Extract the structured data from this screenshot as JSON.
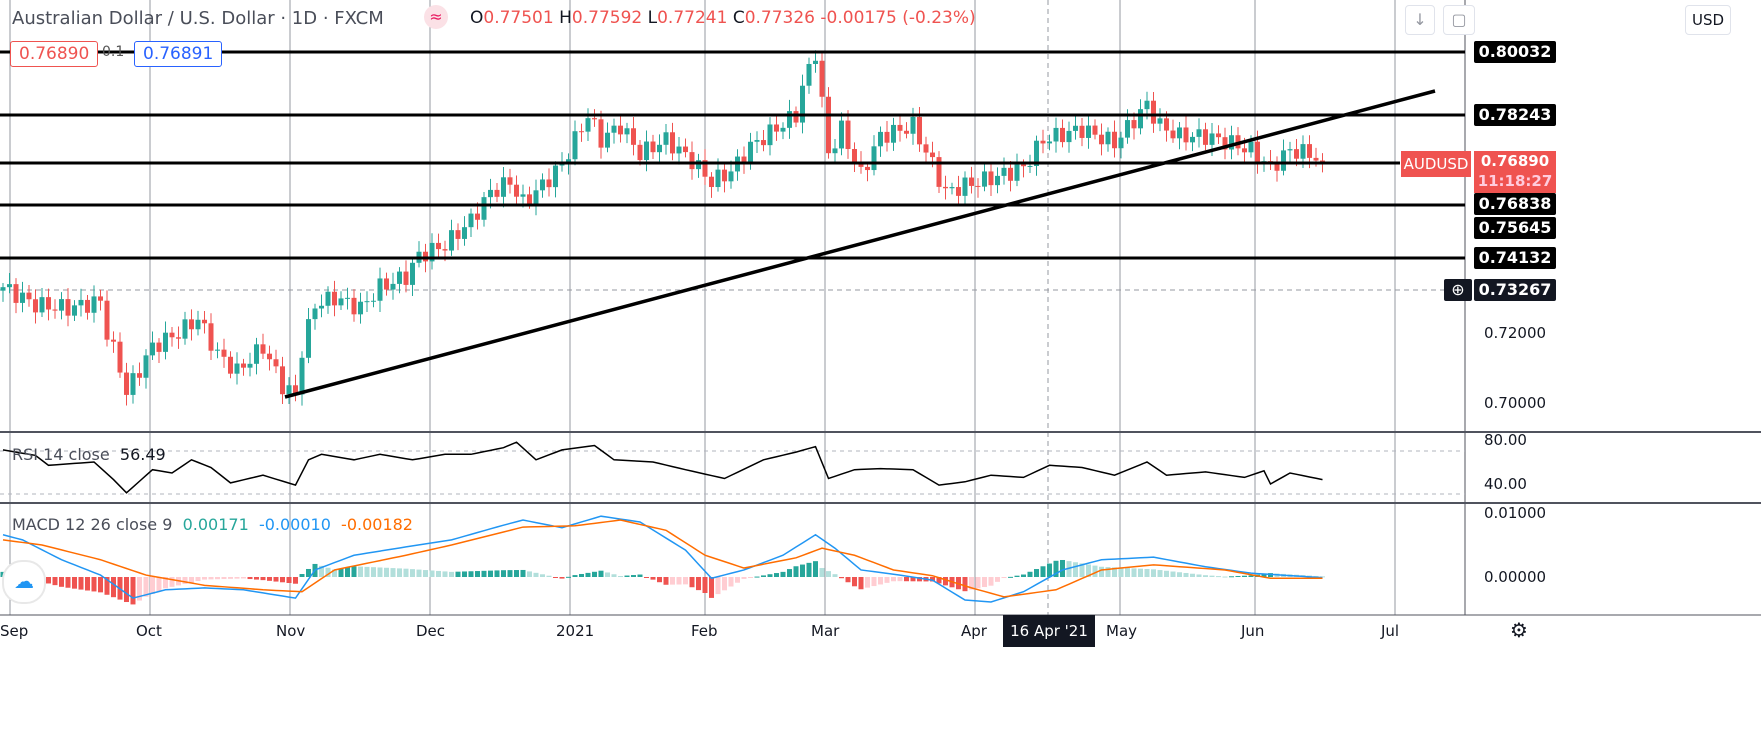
{
  "header": {
    "title": "Australian Dollar / U.S. Dollar · 1D · FXCM",
    "open_label": "O",
    "open": "0.77501",
    "high_label": "H",
    "high": "0.77592",
    "low_label": "L",
    "low": "0.77241",
    "close_label": "C",
    "close": "0.77326",
    "change": "-0.00175 (-0.23%)",
    "currency": "USD"
  },
  "order": {
    "sell": "0.76890",
    "spread": "0.1",
    "buy": "0.76891"
  },
  "levels": [
    {
      "label": "0.80032"
    },
    {
      "label": "0.78243"
    },
    {
      "label": "0.76838"
    },
    {
      "label": "0.75645"
    },
    {
      "label": "0.74132"
    }
  ],
  "current": {
    "symbol": "AUDUSD",
    "price": "0.76890",
    "countdown": "11:18:27"
  },
  "crosshair": {
    "price": "0.73267",
    "date": "16 Apr '21"
  },
  "colors": {
    "up": "#26a69a",
    "down": "#ef5350",
    "macd": "#2196f3",
    "signal": "#ff6d00"
  },
  "chart_data": {
    "type": "candlestick",
    "title": "Australian Dollar / U.S. Dollar · 1D · FXCM",
    "ylim": [
      0.693,
      0.806
    ],
    "y_ticks": [
      "0.72000",
      "0.70000"
    ],
    "x_ticks": [
      "Sep",
      "Oct",
      "Nov",
      "Dec",
      "2021",
      "Feb",
      "Mar",
      "Apr",
      "May",
      "Jun",
      "Jul"
    ],
    "close_path": [
      [
        0,
        0.733
      ],
      [
        5,
        0.728
      ],
      [
        10,
        0.727
      ],
      [
        15,
        0.729
      ],
      [
        16,
        0.72
      ],
      [
        18,
        0.71
      ],
      [
        19,
        0.703
      ],
      [
        23,
        0.716
      ],
      [
        27,
        0.72
      ],
      [
        30,
        0.724
      ],
      [
        33,
        0.714
      ],
      [
        36,
        0.709
      ],
      [
        40,
        0.716
      ],
      [
        43,
        0.705
      ],
      [
        45,
        0.702
      ],
      [
        46,
        0.715
      ],
      [
        48,
        0.728
      ],
      [
        51,
        0.73
      ],
      [
        55,
        0.727
      ],
      [
        58,
        0.733
      ],
      [
        62,
        0.736
      ],
      [
        64,
        0.742
      ],
      [
        68,
        0.745
      ],
      [
        72,
        0.752
      ],
      [
        75,
        0.76
      ],
      [
        78,
        0.763
      ],
      [
        80,
        0.757
      ],
      [
        83,
        0.762
      ],
      [
        86,
        0.768
      ],
      [
        88,
        0.775
      ],
      [
        90,
        0.782
      ],
      [
        92,
        0.775
      ],
      [
        95,
        0.779
      ],
      [
        98,
        0.771
      ],
      [
        102,
        0.775
      ],
      [
        106,
        0.769
      ],
      [
        109,
        0.763
      ],
      [
        112,
        0.766
      ],
      [
        115,
        0.773
      ],
      [
        118,
        0.777
      ],
      [
        122,
        0.782
      ],
      [
        123,
        0.79
      ],
      [
        125,
        0.8
      ],
      [
        127,
        0.771
      ],
      [
        129,
        0.778
      ],
      [
        132,
        0.765
      ],
      [
        135,
        0.776
      ],
      [
        140,
        0.779
      ],
      [
        143,
        0.768
      ],
      [
        145,
        0.76
      ],
      [
        148,
        0.762
      ],
      [
        152,
        0.764
      ],
      [
        157,
        0.767
      ],
      [
        160,
        0.775
      ],
      [
        166,
        0.778
      ],
      [
        171,
        0.774
      ],
      [
        176,
        0.785
      ],
      [
        178,
        0.779
      ],
      [
        181,
        0.776
      ],
      [
        185,
        0.776
      ],
      [
        189,
        0.774
      ],
      [
        192,
        0.772
      ],
      [
        195,
        0.767
      ],
      [
        198,
        0.772
      ],
      [
        201,
        0.771
      ],
      [
        203,
        0.7689
      ]
    ],
    "rsi": {
      "label": "RSI 14 close",
      "value": "56.49",
      "ticks": [
        "80.00",
        "40.00"
      ],
      "path": [
        [
          0,
          71
        ],
        [
          5,
          66
        ],
        [
          7,
          57
        ],
        [
          14,
          60
        ],
        [
          17,
          44
        ],
        [
          19,
          32
        ],
        [
          23,
          53
        ],
        [
          26,
          50
        ],
        [
          29,
          62
        ],
        [
          32,
          55
        ],
        [
          35,
          41
        ],
        [
          40,
          48
        ],
        [
          45,
          39
        ],
        [
          47,
          62
        ],
        [
          49,
          67
        ],
        [
          54,
          62
        ],
        [
          58,
          67
        ],
        [
          63,
          62
        ],
        [
          68,
          67
        ],
        [
          72,
          67
        ],
        [
          77,
          73
        ],
        [
          79,
          78
        ],
        [
          82,
          62
        ],
        [
          86,
          71
        ],
        [
          91,
          75
        ],
        [
          94,
          62
        ],
        [
          100,
          60
        ],
        [
          105,
          53
        ],
        [
          111,
          45
        ],
        [
          117,
          62
        ],
        [
          122,
          69
        ],
        [
          125,
          74
        ],
        [
          127,
          45
        ],
        [
          131,
          53
        ],
        [
          135,
          54
        ],
        [
          140,
          53
        ],
        [
          144,
          39
        ],
        [
          148,
          42
        ],
        [
          152,
          48
        ],
        [
          157,
          46
        ],
        [
          161,
          57
        ],
        [
          166,
          55
        ],
        [
          171,
          48
        ],
        [
          176,
          60
        ],
        [
          179,
          48
        ],
        [
          185,
          51
        ],
        [
          191,
          46
        ],
        [
          194,
          52
        ],
        [
          195,
          40
        ],
        [
          198,
          50
        ],
        [
          203,
          44
        ]
      ]
    },
    "macd": {
      "label": "MACD 12 26 close 9",
      "hist": "0.00171",
      "macd_val": "-0.00010",
      "signal_val": "-0.00182",
      "ticks": [
        "0.01000",
        "0.00000"
      ],
      "macd_path": [
        [
          0,
          0.0066
        ],
        [
          3,
          0.0058
        ],
        [
          9,
          0.0027
        ],
        [
          15,
          0.0003
        ],
        [
          20,
          -0.0033
        ],
        [
          25,
          -0.002
        ],
        [
          31,
          -0.0017
        ],
        [
          37,
          -0.002
        ],
        [
          45,
          -0.0033
        ],
        [
          48,
          0.0011
        ],
        [
          54,
          0.0034
        ],
        [
          62,
          0.0047
        ],
        [
          69,
          0.0058
        ],
        [
          77,
          0.0081
        ],
        [
          80,
          0.0089
        ],
        [
          86,
          0.0077
        ],
        [
          92,
          0.0095
        ],
        [
          98,
          0.0086
        ],
        [
          105,
          0.0042
        ],
        [
          109,
          -0.0002
        ],
        [
          114,
          0.0011
        ],
        [
          120,
          0.0034
        ],
        [
          125,
          0.0066
        ],
        [
          128,
          0.0045
        ],
        [
          132,
          0.0011
        ],
        [
          138,
          0.0003
        ],
        [
          143,
          -0.0005
        ],
        [
          148,
          -0.0036
        ],
        [
          152,
          -0.0039
        ],
        [
          157,
          -0.0023
        ],
        [
          163,
          0.0011
        ],
        [
          169,
          0.0027
        ],
        [
          177,
          0.0031
        ],
        [
          185,
          0.0016
        ],
        [
          192,
          0.0006
        ],
        [
          203,
          -0.0001
        ]
      ],
      "signal_path": [
        [
          0,
          0.0058
        ],
        [
          6,
          0.005
        ],
        [
          15,
          0.0027
        ],
        [
          22,
          0.0003
        ],
        [
          31,
          -0.0013
        ],
        [
          40,
          -0.002
        ],
        [
          46,
          -0.0023
        ],
        [
          51,
          0.0011
        ],
        [
          62,
          0.0034
        ],
        [
          69,
          0.005
        ],
        [
          80,
          0.0078
        ],
        [
          88,
          0.008
        ],
        [
          95,
          0.0089
        ],
        [
          102,
          0.0073
        ],
        [
          108,
          0.0034
        ],
        [
          114,
          0.0014
        ],
        [
          122,
          0.003
        ],
        [
          126,
          0.0045
        ],
        [
          131,
          0.0034
        ],
        [
          137,
          0.0011
        ],
        [
          143,
          0.0002
        ],
        [
          149,
          -0.0017
        ],
        [
          154,
          -0.0031
        ],
        [
          162,
          -0.002
        ],
        [
          169,
          0.0011
        ],
        [
          177,
          0.0019
        ],
        [
          188,
          0.0011
        ],
        [
          195,
          -0.0002
        ],
        [
          203,
          -0.0002
        ]
      ]
    }
  }
}
